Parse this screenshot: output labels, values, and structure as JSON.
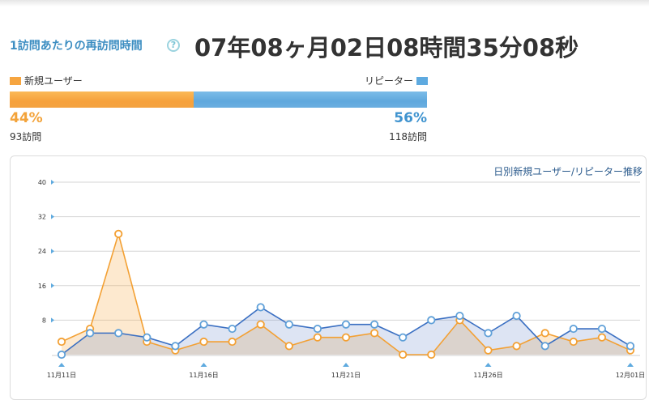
{
  "header": {
    "label": "1訪問あたりの再訪問時間",
    "help_icon": "question-circle-icon",
    "time_display": "07年08ヶ月02日08時間35分08秒"
  },
  "legend": {
    "new_label": "新規ユーザー",
    "repeater_label": "リピーター"
  },
  "colors": {
    "new": "#f4a23c",
    "repeater": "#5ea9df",
    "new_line": "#f3a033",
    "repeater_line": "#3a6fc2"
  },
  "stats": {
    "new_pct": "44%",
    "new_share": 0.44,
    "new_visits": "93訪問",
    "repeater_pct": "56%",
    "repeater_visits": "118訪問"
  },
  "chart_data": {
    "type": "area",
    "title": "日別新規ユーザー/リピーター推移",
    "x_tick_labels": [
      "11月11日",
      "11月16日",
      "11月21日",
      "11月26日",
      "12月01日"
    ],
    "x_tick_indices": [
      0,
      5,
      10,
      15,
      20
    ],
    "y_ticks": [
      8,
      16,
      24,
      32,
      40
    ],
    "ylim": [
      0,
      40
    ],
    "series": [
      {
        "name": "新規ユーザー",
        "values": [
          3,
          6,
          28,
          3,
          1,
          3,
          3,
          7,
          2,
          4,
          4,
          5,
          0,
          0,
          8,
          1,
          2,
          5,
          3,
          4,
          1
        ]
      },
      {
        "name": "リピーター",
        "values": [
          0,
          5,
          5,
          4,
          2,
          7,
          6,
          11,
          7,
          6,
          7,
          7,
          4,
          8,
          9,
          5,
          9,
          2,
          6,
          6,
          2
        ]
      }
    ]
  }
}
